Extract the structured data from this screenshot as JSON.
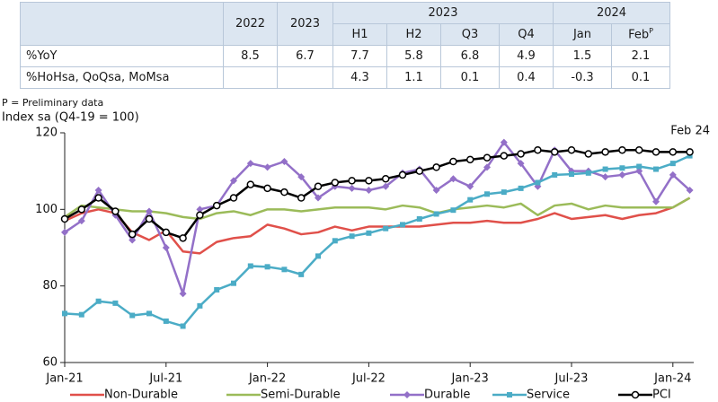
{
  "table": {
    "years": [
      "2022",
      "2023"
    ],
    "groups": [
      {
        "label": "2023",
        "columns": [
          "H1",
          "H2",
          "Q3",
          "Q4"
        ]
      },
      {
        "label": "2024",
        "columns": [
          "Jan",
          {
            "text": "Feb",
            "sup": "P"
          }
        ]
      }
    ],
    "rows": [
      {
        "label": "%YoY",
        "values": [
          8.5,
          6.7,
          7.7,
          5.8,
          6.8,
          4.9,
          1.5,
          2.1
        ]
      },
      {
        "label": "%HoHsa, QoQsa, MoMsa",
        "values": [
          null,
          null,
          4.3,
          1.1,
          0.1,
          0.4,
          -0.3,
          0.1
        ]
      }
    ]
  },
  "chart_data": {
    "type": "line",
    "note": "P = Preliminary data",
    "y_label": "Index sa (Q4-19 = 100)",
    "annotation": "Feb 24",
    "categories": [
      "Jan-21",
      null,
      null,
      null,
      null,
      null,
      "Jul-21",
      null,
      null,
      null,
      null,
      null,
      "Jan-22",
      null,
      null,
      null,
      null,
      null,
      "Jul-22",
      null,
      null,
      null,
      null,
      null,
      "Jan-23",
      null,
      null,
      null,
      null,
      null,
      "Jul-23",
      null,
      null,
      null,
      null,
      null,
      "Jan-24",
      null
    ],
    "ylim": [
      60,
      120
    ],
    "yticks": [
      60,
      80,
      100,
      120
    ],
    "grid": false,
    "legend": "bottom",
    "series": [
      {
        "name": "Non-Durable",
        "color": "#e0504a",
        "values": [
          97,
          99,
          100,
          99,
          94,
          92,
          94.5,
          89,
          88.5,
          91.5,
          92.5,
          93,
          96,
          95,
          93.5,
          94,
          95.5,
          94.5,
          95.5,
          95.5,
          95.5,
          95.5,
          96,
          96.5,
          96.5,
          97,
          96.5,
          96.5,
          97.5,
          99,
          97.5,
          98,
          98.5,
          97.5,
          98.5,
          99,
          100.5,
          103
        ]
      },
      {
        "name": "Semi-Durable",
        "color": "#9bbb59",
        "values": [
          98,
          101,
          100.5,
          100,
          99.5,
          99.5,
          99,
          98,
          97.5,
          99,
          99.5,
          98.5,
          100,
          100,
          99.5,
          100,
          100.5,
          100.5,
          100.5,
          100,
          101,
          100.5,
          99,
          100,
          100.5,
          101,
          100.5,
          101.5,
          98.5,
          101,
          101.5,
          100,
          101,
          100.5,
          100.5,
          100.5,
          100.5,
          103
        ]
      },
      {
        "name": "Durable",
        "color": "#9370c8",
        "marker": "diamond",
        "values": [
          94,
          97,
          105,
          98.5,
          92,
          99.5,
          90,
          78,
          100,
          101,
          107.5,
          112,
          111,
          112.5,
          108.5,
          103,
          106,
          105.5,
          105,
          106,
          109.5,
          110.5,
          105,
          108,
          106,
          111,
          117.5,
          112,
          106,
          115.5,
          110,
          110,
          108.5,
          109,
          110,
          102,
          109,
          105
        ]
      },
      {
        "name": "Service",
        "color": "#4bacc6",
        "marker": "square",
        "values": [
          72.8,
          72.5,
          76,
          75.5,
          72.3,
          72.8,
          70.8,
          69.5,
          74.8,
          79,
          80.7,
          85.2,
          85,
          84.3,
          83,
          87.8,
          91.8,
          93,
          93.8,
          95,
          96,
          97.5,
          98.8,
          99.8,
          102.5,
          104,
          104.5,
          105.5,
          107,
          109,
          109.2,
          109.5,
          110.5,
          110.8,
          111.2,
          110.5,
          112,
          114
        ]
      },
      {
        "name": "PCI",
        "color": "#000000",
        "marker": "circle",
        "values": [
          97.5,
          100,
          103,
          99.5,
          93.5,
          97.5,
          94,
          92.5,
          98.5,
          101,
          103,
          106.5,
          105.5,
          104.5,
          103,
          106,
          107,
          107.5,
          107.5,
          108,
          109,
          110,
          111,
          112.5,
          113,
          113.5,
          114,
          114.5,
          115.5,
          115,
          115.5,
          114.5,
          115,
          115.5,
          115.5,
          115,
          115,
          115
        ]
      }
    ]
  }
}
